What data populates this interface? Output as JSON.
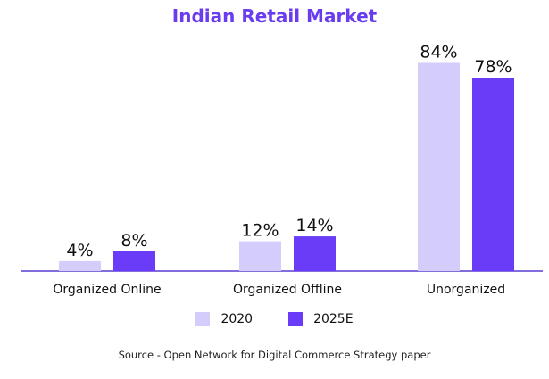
{
  "chart_data": {
    "type": "bar",
    "title": "Indian Retail Market",
    "categories": [
      "Organized Online",
      "Organized Offline",
      "Unorganized"
    ],
    "series": [
      {
        "name": "2020",
        "values": [
          4,
          12,
          84
        ],
        "labels": [
          "4%",
          "12%",
          "84%"
        ],
        "color": "#d4ccfb"
      },
      {
        "name": "2025E",
        "values": [
          8,
          14,
          78
        ],
        "labels": [
          "8%",
          "14%",
          "78%"
        ],
        "color": "#6a3cf8"
      }
    ],
    "unit": "%",
    "ylim": [
      0,
      100
    ],
    "grid": false,
    "legend_position": "bottom",
    "axis_color": "#5a3ccf"
  },
  "source": "Source - Open Network for Digital Commerce Strategy paper"
}
